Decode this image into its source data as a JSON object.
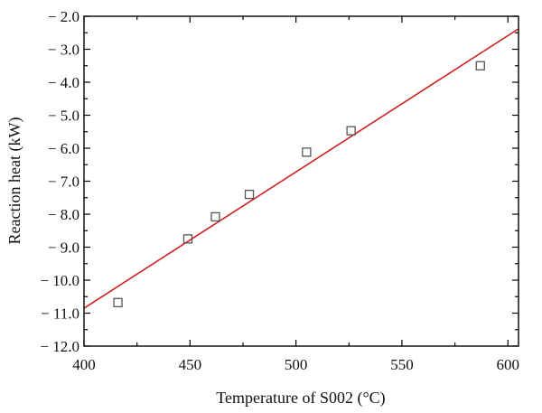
{
  "chart_data": {
    "type": "scatter",
    "title": "",
    "xlabel": "Temperature of S002 (°C)",
    "ylabel": "Reaction heat (kW)",
    "xlim": [
      400,
      605
    ],
    "ylim": [
      -12.0,
      -2.0
    ],
    "xticks": [
      400,
      450,
      500,
      550,
      600
    ],
    "xtick_labels": [
      "400",
      "450",
      "500",
      "550",
      "600"
    ],
    "yticks": [
      -2.0,
      -3.0,
      -4.0,
      -5.0,
      -6.0,
      -7.0,
      -8.0,
      -9.0,
      -10.0,
      -11.0,
      -12.0
    ],
    "ytick_labels": [
      "− 2.0",
      "− 3.0",
      "− 4.0",
      "− 5.0",
      "− 6.0",
      "− 7.0",
      "− 8.0",
      "− 9.0",
      "− 10.0",
      "− 11.0",
      "− 12.0"
    ],
    "grid": false,
    "legend": "none",
    "series": [
      {
        "marker": "open-square",
        "color": "#555555",
        "points": [
          {
            "x": 416,
            "y": -10.68
          },
          {
            "x": 449,
            "y": -8.75
          },
          {
            "x": 462,
            "y": -8.08
          },
          {
            "x": 478,
            "y": -7.4
          },
          {
            "x": 505,
            "y": -6.12
          },
          {
            "x": 526,
            "y": -5.47
          },
          {
            "x": 587,
            "y": -3.5
          }
        ]
      }
    ],
    "fit_line": {
      "color": "#cc1f1f",
      "x": [
        400,
        605
      ],
      "y": [
        -10.85,
        -2.38
      ]
    }
  }
}
